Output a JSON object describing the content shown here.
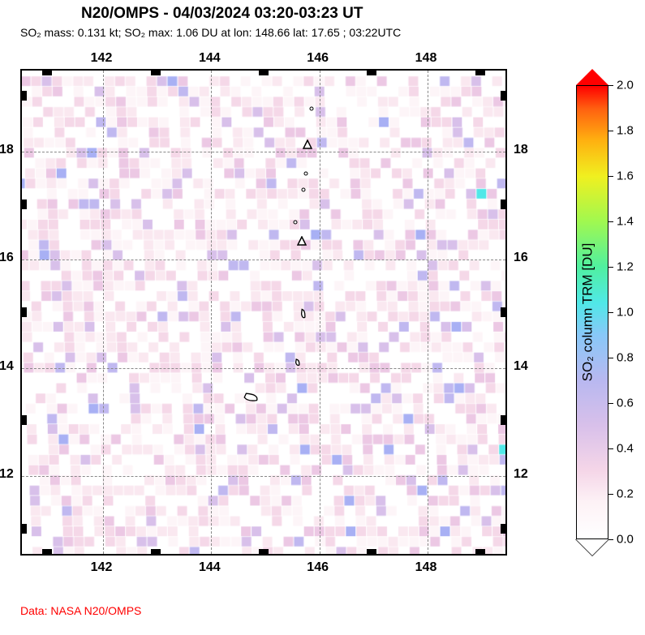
{
  "title": "N20/OMPS - 04/03/2024 03:20-03:23 UT",
  "subtitle": "SO₂ mass: 0.131 kt; SO₂ max: 1.06 DU at lon: 148.66 lat: 17.65 ; 03:22UTC",
  "data_source": "Data: NASA N20/OMPS",
  "map": {
    "lon_range": [
      140.5,
      149.5
    ],
    "lat_range": [
      10.5,
      19.5
    ],
    "lon_ticks": [
      142,
      144,
      146,
      148
    ],
    "lat_ticks": [
      12,
      14,
      16,
      18
    ],
    "grid_color": "#888888",
    "border_color": "#000000",
    "volcanoes": [
      {
        "lon": 145.78,
        "lat": 18.13
      },
      {
        "lon": 145.67,
        "lat": 16.35
      }
    ],
    "islands": [
      {
        "lon": 145.7,
        "lat": 15.0,
        "w": 6,
        "h": 14
      },
      {
        "lon": 145.6,
        "lat": 14.1,
        "w": 6,
        "h": 10
      },
      {
        "lon": 144.75,
        "lat": 13.45,
        "w": 22,
        "h": 12
      }
    ],
    "small_dots": [
      {
        "lon": 145.85,
        "lat": 18.8
      },
      {
        "lon": 145.75,
        "lat": 17.6
      },
      {
        "lon": 145.7,
        "lat": 17.3
      },
      {
        "lon": 145.55,
        "lat": 16.7
      }
    ]
  },
  "colorbar": {
    "label": "SO₂ column TRM [DU]",
    "min": 0.0,
    "max": 2.0,
    "ticks": [
      0.0,
      0.2,
      0.4,
      0.6,
      0.8,
      1.0,
      1.2,
      1.4,
      1.6,
      1.8,
      2.0
    ],
    "gradient": [
      {
        "stop": 0.0,
        "color": "#ffffff"
      },
      {
        "stop": 0.08,
        "color": "#fdf2f6"
      },
      {
        "stop": 0.15,
        "color": "#f5d6e8"
      },
      {
        "stop": 0.25,
        "color": "#d8c0ea"
      },
      {
        "stop": 0.35,
        "color": "#b8b8f0"
      },
      {
        "stop": 0.45,
        "color": "#88c8f8"
      },
      {
        "stop": 0.52,
        "color": "#50e8e8"
      },
      {
        "stop": 0.6,
        "color": "#50f0a0"
      },
      {
        "stop": 0.7,
        "color": "#a0f850"
      },
      {
        "stop": 0.8,
        "color": "#f0f020"
      },
      {
        "stop": 0.88,
        "color": "#ffb010"
      },
      {
        "stop": 0.95,
        "color": "#ff6010"
      },
      {
        "stop": 1.0,
        "color": "#ff0000"
      }
    ]
  },
  "pixel_colors": {
    "0": "#ffffff",
    "1": "#fdf5f8",
    "2": "#fae8f0",
    "3": "#f5d8e8",
    "4": "#ecc8e4",
    "5": "#d8c0ea",
    "6": "#c0b8f0",
    "7": "#a8b0f4",
    "8": "#50e8e8"
  },
  "fonts": {
    "title_size": 19,
    "subtitle_size": 14,
    "axis_size": 16,
    "cb_tick_size": 15,
    "cb_label_size": 17
  }
}
